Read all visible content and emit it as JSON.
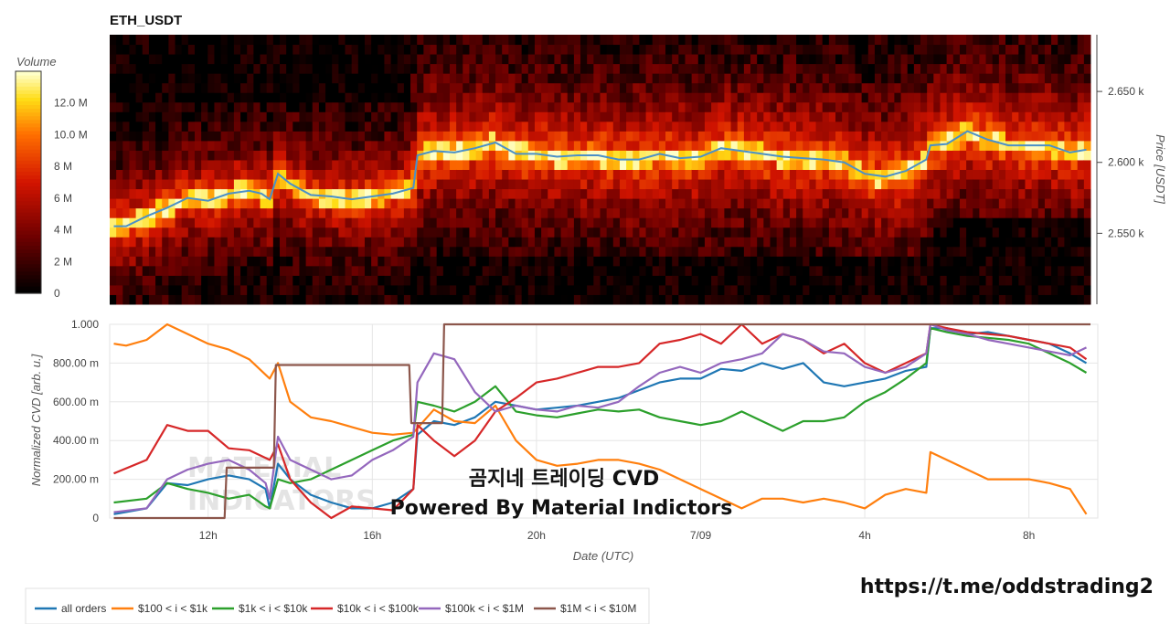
{
  "chart_data": [
    {
      "type": "heatmap",
      "title": "ETH_USDT",
      "ylabel": "Price [USDT]",
      "ylim": [
        2500,
        2690
      ],
      "y_ticks": [
        2550,
        2600,
        2650
      ],
      "y_tick_labels": [
        "2.550 k",
        "2.600 k",
        "2.650 k"
      ],
      "colorbar": {
        "title": "Volume",
        "ticks": [
          0,
          2,
          4,
          6,
          8,
          10,
          12
        ],
        "tick_labels": [
          "0",
          "2 M",
          "4 M",
          "6 M",
          "8 M",
          "10.0 M",
          "12.0 M"
        ],
        "range": [
          0,
          14
        ]
      },
      "series": [
        {
          "type": "line",
          "x": [
            9.7,
            10.0,
            10.5,
            11.0,
            11.5,
            12.0,
            12.5,
            13.0,
            13.3,
            13.5,
            13.7,
            14.0,
            14.5,
            15.0,
            15.5,
            16.0,
            16.5,
            17.0,
            17.1,
            17.5,
            18.0,
            18.5,
            19.0,
            19.5,
            20.0,
            20.5,
            21.0,
            21.5,
            22.0,
            22.5,
            23.0,
            23.5,
            24.0,
            24.5,
            25.0,
            25.5,
            26.0,
            26.5,
            27.0,
            27.5,
            28.0,
            28.5,
            29.0,
            29.5,
            29.6,
            30.0,
            30.5,
            31.0,
            31.5,
            32.0,
            32.5,
            33.0,
            33.4
          ],
          "y": [
            2555,
            2555,
            2562,
            2568,
            2575,
            2573,
            2578,
            2580,
            2578,
            2574,
            2592,
            2585,
            2577,
            2576,
            2574,
            2576,
            2578,
            2582,
            2605,
            2608,
            2607,
            2610,
            2614,
            2606,
            2606,
            2604,
            2605,
            2605,
            2602,
            2602,
            2606,
            2603,
            2604,
            2610,
            2608,
            2606,
            2604,
            2603,
            2602,
            2600,
            2592,
            2590,
            2594,
            2602,
            2612,
            2613,
            2622,
            2616,
            2612,
            2612,
            2612,
            2607,
            2609
          ]
        }
      ]
    },
    {
      "type": "line",
      "xlabel": "Date (UTC)",
      "ylabel": "Normalized CVD [arb. u.]",
      "ylim": [
        0,
        1
      ],
      "y_ticks": [
        0,
        0.2,
        0.4,
        0.6,
        0.8,
        1.0
      ],
      "y_tick_labels": [
        "0",
        "200.00 m",
        "400.00 m",
        "600.00 m",
        "800.00 m",
        "1.000"
      ],
      "xlim": [
        9.6,
        33.5
      ],
      "x_ticks": [
        12,
        16,
        20,
        24,
        28,
        32
      ],
      "x_tick_labels": [
        "12h",
        "16h",
        "20h",
        "7/09",
        "4h",
        "8h"
      ],
      "legend_position": "bottom",
      "series": [
        {
          "name": "all orders",
          "color": "#1f77b4",
          "x": [
            9.7,
            10.5,
            11.0,
            11.5,
            12.0,
            12.5,
            13.0,
            13.4,
            13.5,
            13.7,
            14.0,
            14.5,
            15.0,
            15.5,
            16.0,
            16.5,
            17.0,
            17.1,
            17.5,
            18.0,
            18.5,
            19.0,
            19.5,
            20.0,
            20.5,
            21.0,
            21.5,
            22.0,
            22.5,
            23.0,
            23.5,
            24.0,
            24.5,
            25.0,
            25.5,
            26.0,
            26.5,
            27.0,
            27.5,
            28.0,
            28.5,
            29.0,
            29.5,
            29.6,
            30.0,
            30.5,
            31.0,
            31.5,
            32.0,
            32.5,
            33.0,
            33.4
          ],
          "y": [
            0.02,
            0.05,
            0.18,
            0.17,
            0.2,
            0.22,
            0.2,
            0.15,
            0.05,
            0.28,
            0.2,
            0.12,
            0.08,
            0.05,
            0.05,
            0.08,
            0.15,
            0.43,
            0.5,
            0.48,
            0.52,
            0.6,
            0.58,
            0.56,
            0.57,
            0.58,
            0.6,
            0.62,
            0.66,
            0.7,
            0.72,
            0.72,
            0.77,
            0.76,
            0.8,
            0.77,
            0.8,
            0.7,
            0.68,
            0.7,
            0.72,
            0.76,
            0.78,
            0.98,
            0.98,
            0.95,
            0.96,
            0.94,
            0.92,
            0.9,
            0.85,
            0.8
          ]
        },
        {
          "name": "$100 < i < $1k",
          "color": "#ff7f0e",
          "x": [
            9.7,
            10.0,
            10.5,
            11.0,
            11.5,
            12.0,
            12.5,
            13.0,
            13.5,
            13.7,
            14.0,
            14.5,
            15.0,
            15.5,
            16.0,
            16.5,
            17.0,
            17.5,
            18.0,
            18.5,
            19.0,
            19.5,
            20.0,
            20.5,
            21.0,
            21.5,
            22.0,
            22.5,
            23.0,
            23.5,
            24.0,
            24.5,
            25.0,
            25.5,
            26.0,
            26.5,
            27.0,
            27.5,
            28.0,
            28.5,
            29.0,
            29.5,
            29.6,
            30.0,
            30.5,
            31.0,
            31.5,
            32.0,
            32.5,
            33.0,
            33.4
          ],
          "y": [
            0.9,
            0.89,
            0.92,
            1.0,
            0.95,
            0.9,
            0.87,
            0.82,
            0.72,
            0.8,
            0.6,
            0.52,
            0.5,
            0.47,
            0.44,
            0.43,
            0.44,
            0.56,
            0.5,
            0.49,
            0.58,
            0.4,
            0.3,
            0.27,
            0.28,
            0.3,
            0.3,
            0.28,
            0.25,
            0.2,
            0.15,
            0.1,
            0.05,
            0.1,
            0.1,
            0.08,
            0.1,
            0.08,
            0.05,
            0.12,
            0.15,
            0.13,
            0.34,
            0.3,
            0.25,
            0.2,
            0.2,
            0.2,
            0.18,
            0.15,
            0.02
          ]
        },
        {
          "name": "$1k < i < $10k",
          "color": "#2ca02c",
          "x": [
            9.7,
            10.5,
            11.0,
            11.5,
            12.0,
            12.5,
            13.0,
            13.4,
            13.5,
            13.7,
            14.0,
            14.5,
            15.0,
            15.5,
            16.0,
            16.5,
            17.0,
            17.1,
            17.5,
            18.0,
            18.5,
            19.0,
            19.5,
            20.0,
            20.5,
            21.0,
            21.5,
            22.0,
            22.5,
            23.0,
            23.5,
            24.0,
            24.5,
            25.0,
            25.5,
            26.0,
            26.5,
            27.0,
            27.5,
            28.0,
            28.5,
            29.0,
            29.5,
            29.6,
            30.0,
            30.5,
            31.0,
            31.5,
            32.0,
            32.5,
            33.0,
            33.4
          ],
          "y": [
            0.08,
            0.1,
            0.18,
            0.15,
            0.13,
            0.1,
            0.12,
            0.06,
            0.05,
            0.2,
            0.18,
            0.2,
            0.25,
            0.3,
            0.35,
            0.4,
            0.43,
            0.6,
            0.58,
            0.55,
            0.6,
            0.68,
            0.55,
            0.53,
            0.52,
            0.54,
            0.56,
            0.55,
            0.56,
            0.52,
            0.5,
            0.48,
            0.5,
            0.55,
            0.5,
            0.45,
            0.5,
            0.5,
            0.52,
            0.6,
            0.65,
            0.72,
            0.8,
            0.98,
            0.96,
            0.94,
            0.93,
            0.92,
            0.9,
            0.85,
            0.8,
            0.75
          ]
        },
        {
          "name": "$10k < i < $100k",
          "color": "#d62728",
          "x": [
            9.7,
            10.5,
            11.0,
            11.5,
            12.0,
            12.5,
            13.0,
            13.5,
            13.7,
            14.0,
            14.5,
            15.0,
            15.5,
            16.0,
            16.5,
            17.0,
            17.1,
            17.5,
            18.0,
            18.5,
            19.0,
            19.5,
            20.0,
            20.5,
            21.0,
            21.5,
            22.0,
            22.5,
            23.0,
            23.5,
            24.0,
            24.5,
            25.0,
            25.5,
            26.0,
            26.5,
            27.0,
            27.5,
            28.0,
            28.5,
            29.0,
            29.5,
            29.6,
            30.0,
            30.5,
            31.0,
            31.5,
            32.0,
            32.5,
            33.0,
            33.4
          ],
          "y": [
            0.23,
            0.3,
            0.48,
            0.45,
            0.45,
            0.36,
            0.35,
            0.3,
            0.38,
            0.2,
            0.08,
            0.0,
            0.06,
            0.05,
            0.04,
            0.15,
            0.48,
            0.4,
            0.32,
            0.4,
            0.55,
            0.62,
            0.7,
            0.72,
            0.75,
            0.78,
            0.78,
            0.8,
            0.9,
            0.92,
            0.95,
            0.9,
            1.0,
            0.9,
            0.95,
            0.92,
            0.85,
            0.9,
            0.8,
            0.75,
            0.8,
            0.85,
            1.0,
            0.98,
            0.96,
            0.95,
            0.94,
            0.92,
            0.9,
            0.88,
            0.82
          ]
        },
        {
          "name": "$100k < i < $1M",
          "color": "#9467bd",
          "x": [
            9.7,
            10.5,
            11.0,
            11.5,
            12.0,
            12.5,
            13.0,
            13.4,
            13.5,
            13.7,
            14.0,
            14.5,
            15.0,
            15.5,
            16.0,
            16.5,
            17.0,
            17.1,
            17.5,
            18.0,
            18.5,
            19.0,
            19.5,
            20.0,
            20.5,
            21.0,
            21.5,
            22.0,
            22.5,
            23.0,
            23.5,
            24.0,
            24.5,
            25.0,
            25.5,
            26.0,
            26.5,
            27.0,
            27.5,
            28.0,
            28.5,
            29.0,
            29.5,
            29.6,
            30.0,
            30.5,
            31.0,
            31.5,
            32.0,
            32.5,
            33.0,
            33.4
          ],
          "y": [
            0.03,
            0.05,
            0.2,
            0.25,
            0.28,
            0.3,
            0.25,
            0.18,
            0.1,
            0.42,
            0.3,
            0.25,
            0.2,
            0.22,
            0.3,
            0.35,
            0.42,
            0.7,
            0.85,
            0.82,
            0.65,
            0.55,
            0.58,
            0.56,
            0.55,
            0.58,
            0.57,
            0.6,
            0.68,
            0.75,
            0.78,
            0.75,
            0.8,
            0.82,
            0.85,
            0.95,
            0.92,
            0.86,
            0.85,
            0.78,
            0.75,
            0.78,
            0.85,
            1.0,
            0.97,
            0.95,
            0.92,
            0.9,
            0.88,
            0.86,
            0.84,
            0.88
          ]
        },
        {
          "name": "$1M < i < $10M",
          "color": "#8c564b",
          "x": [
            9.7,
            12.4,
            12.45,
            13.6,
            13.65,
            16.9,
            16.95,
            17.7,
            17.75,
            33.5
          ],
          "y": [
            0.0,
            0.0,
            0.26,
            0.26,
            0.79,
            0.79,
            0.49,
            0.49,
            1.0,
            1.0
          ]
        }
      ]
    }
  ],
  "overlay": {
    "line1": "곰지네 트레이딩 CVD",
    "line2": "Powered By Material Indictors",
    "watermark1": "MATERIAL",
    "watermark2": "INDICATORS",
    "link": "https://t.me/oddstrading2"
  },
  "colors": {
    "heat_low": "#000000",
    "heat_mid": "#cc0000",
    "heat_high": "#ffff66",
    "price_line": "#4a90c8"
  }
}
